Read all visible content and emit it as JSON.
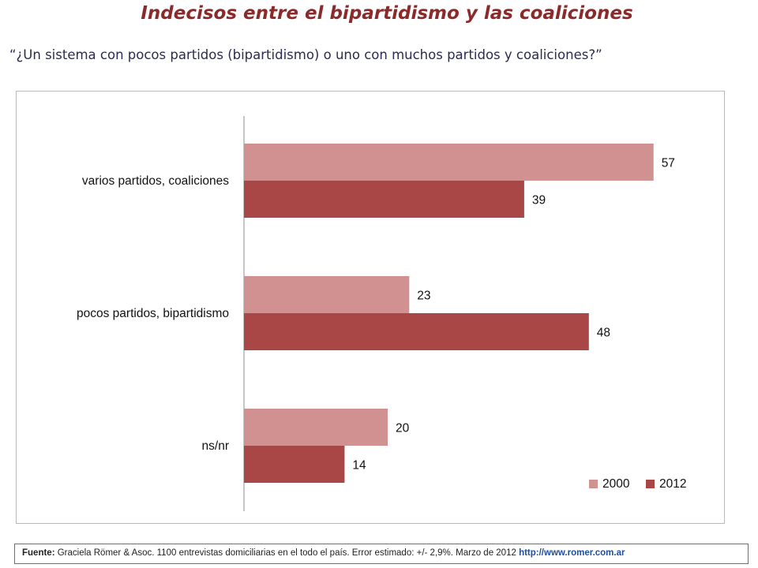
{
  "title": "Indecisos entre el bipartidismo y las coaliciones",
  "question": "“¿Un sistema con pocos partidos (bipartidismo) o uno con muchos partidos y coaliciones?”",
  "source": {
    "label": "Fuente:",
    "text": "Graciela Römer & Asoc. 1100 entrevistas domiciliarias en el todo el país. Error estimado: +/- 2,9%. Marzo de 2012",
    "link": "http://www.romer.com.ar"
  },
  "chart_data": {
    "type": "bar",
    "orientation": "horizontal",
    "categories": [
      "varios partidos, coaliciones",
      "pocos partidos, bipartidismo",
      "ns/nr"
    ],
    "series": [
      {
        "name": "2000",
        "values": [
          57,
          23,
          20
        ],
        "color": "#d19190"
      },
      {
        "name": "2012",
        "values": [
          39,
          48,
          14
        ],
        "color": "#a94746"
      }
    ],
    "xlim": [
      0,
      60
    ],
    "grid": false,
    "legend": "bottom-right"
  }
}
